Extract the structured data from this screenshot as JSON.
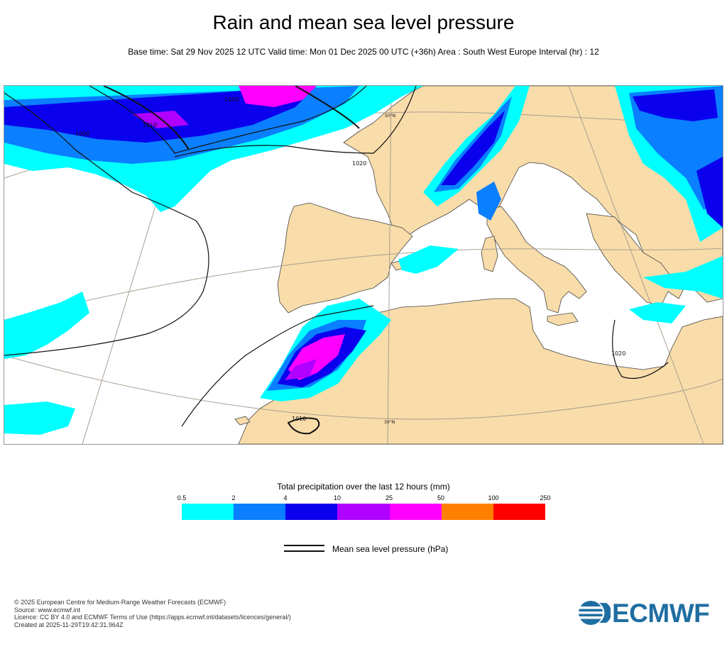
{
  "title": "Rain and mean sea level pressure",
  "subtitle": "Base time: Sat 29 Nov 2025 12 UTC Valid time: Mon 01 Dec 2025 00 UTC (+36h) Area : South West Europe Interval (hr) : 12",
  "map": {
    "isobar_labels": [
      "1000",
      "1010",
      "1000",
      "1020",
      "1020",
      "1010"
    ],
    "latitude_labels": [
      "50°N",
      "30°N"
    ],
    "colors": {
      "land": "#f8dcaa",
      "sea": "#ffffff",
      "graticule": "#a89f90",
      "coastline": "#333333",
      "isobar": "#111111"
    }
  },
  "legend": {
    "precip_title": "Total precipitation over the last 12 hours (mm)",
    "ticks": [
      "0.5",
      "2",
      "4",
      "10",
      "25",
      "50",
      "100",
      "250"
    ],
    "colors": [
      "#00ffff",
      "#0a7fff",
      "#0b00ee",
      "#b000ff",
      "#ff00ff",
      "#ff8000",
      "#ff0000"
    ],
    "msl_label": "Mean sea level pressure (hPa)"
  },
  "footer": {
    "lines": [
      "© 2025 European Centre for Medium-Range Weather Forecasts (ECMWF)",
      "Source: www.ecmwf.int",
      "Licence: CC BY 4.0 and ECMWF Terms of Use (https://apps.ecmwf.int/datasets/licences/general/)",
      "Created at 2025-11-29T19:42:31.964Z"
    ]
  },
  "logo": {
    "text": "ECMWF",
    "color": "#1f6ea2"
  }
}
